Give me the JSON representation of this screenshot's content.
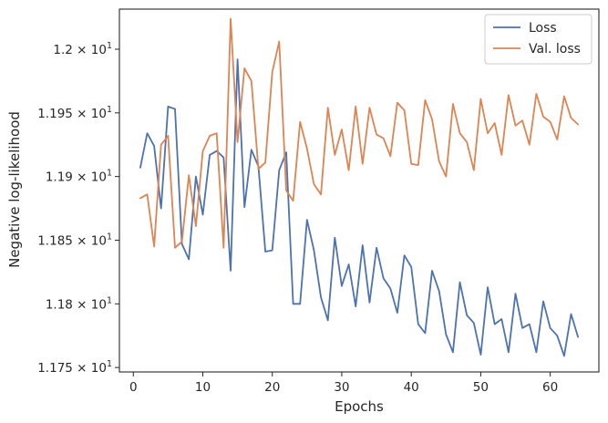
{
  "chart_data": {
    "type": "line",
    "xlabel": "Epochs",
    "ylabel": "Negative log-likelihood",
    "xlim": [
      -2,
      67
    ],
    "ylim": [
      11.7465,
      12.0315
    ],
    "x_ticks": [
      0,
      10,
      20,
      30,
      40,
      50,
      60
    ],
    "x_tick_labels": [
      "0",
      "10",
      "20",
      "30",
      "40",
      "50",
      "60"
    ],
    "y_ticks": [
      11.75,
      11.8,
      11.85,
      11.9,
      11.95,
      12.0
    ],
    "y_tick_labels": [
      {
        "mantissa": "1.175",
        "exp": "1"
      },
      {
        "mantissa": "1.18",
        "exp": "1"
      },
      {
        "mantissa": "1.185",
        "exp": "1"
      },
      {
        "mantissa": "1.19",
        "exp": "1"
      },
      {
        "mantissa": "1.195",
        "exp": "1"
      },
      {
        "mantissa": "1.2",
        "exp": "1"
      }
    ],
    "grid": false,
    "legend_position": "top-right",
    "x": [
      1,
      2,
      3,
      4,
      5,
      6,
      7,
      8,
      9,
      10,
      11,
      12,
      13,
      14,
      15,
      16,
      17,
      18,
      19,
      20,
      21,
      22,
      23,
      24,
      25,
      26,
      27,
      28,
      29,
      30,
      31,
      32,
      33,
      34,
      35,
      36,
      37,
      38,
      39,
      40,
      41,
      42,
      43,
      44,
      45,
      46,
      47,
      48,
      49,
      50,
      51,
      52,
      53,
      54,
      55,
      56,
      57,
      58,
      59,
      60,
      61,
      62,
      63,
      64
    ],
    "series": [
      {
        "name": "Loss",
        "color": "#4c72b0",
        "values": [
          11.907,
          11.934,
          11.924,
          11.875,
          11.955,
          11.953,
          11.847,
          11.835,
          11.9,
          11.87,
          11.917,
          11.92,
          11.915,
          11.826,
          11.992,
          11.876,
          11.921,
          11.908,
          11.841,
          11.842,
          11.905,
          11.919,
          11.8,
          11.8,
          11.866,
          11.842,
          11.805,
          11.787,
          11.852,
          11.814,
          11.831,
          11.798,
          11.846,
          11.801,
          11.844,
          11.82,
          11.812,
          11.793,
          11.838,
          11.829,
          11.784,
          11.777,
          11.826,
          11.81,
          11.776,
          11.762,
          11.817,
          11.791,
          11.785,
          11.76,
          11.813,
          11.784,
          11.788,
          11.762,
          11.808,
          11.781,
          11.784,
          11.762,
          11.802,
          11.781,
          11.775,
          11.759,
          11.792,
          11.774
        ]
      },
      {
        "name": "Val. loss",
        "color": "#dd8452",
        "values": [
          11.883,
          11.886,
          11.845,
          11.925,
          11.932,
          11.844,
          11.849,
          11.901,
          11.861,
          11.92,
          11.932,
          11.934,
          11.844,
          12.024,
          11.927,
          11.985,
          11.975,
          11.906,
          11.911,
          11.982,
          12.006,
          11.889,
          11.881,
          11.943,
          11.922,
          11.894,
          11.886,
          11.954,
          11.917,
          11.937,
          11.905,
          11.955,
          11.91,
          11.954,
          11.933,
          11.93,
          11.916,
          11.958,
          11.952,
          11.91,
          11.909,
          11.96,
          11.945,
          11.912,
          11.9,
          11.957,
          11.934,
          11.927,
          11.905,
          11.961,
          11.934,
          11.942,
          11.917,
          11.964,
          11.94,
          11.944,
          11.925,
          11.965,
          11.947,
          11.943,
          11.929,
          11.963,
          11.946,
          11.941
        ]
      }
    ]
  }
}
